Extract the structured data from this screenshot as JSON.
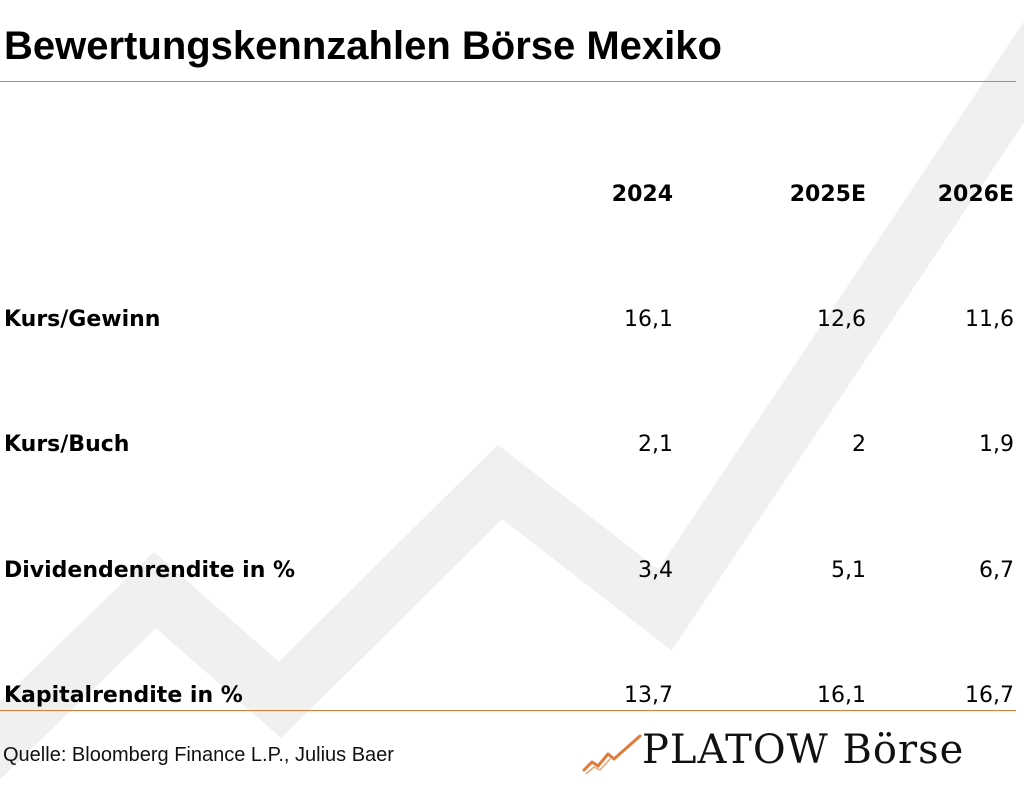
{
  "title": "Bewertungskennzahlen Börse Mexiko",
  "source": "Quelle: Bloomberg Finance L.P., Julius Baer",
  "logo_text": "PLATOW Börse",
  "colors": {
    "accent": "#e07b39",
    "background_arrow": "#f0f0f0",
    "text": "#000000"
  },
  "chart_data": {
    "type": "table",
    "columns": [
      "2024",
      "2025E",
      "2026E"
    ],
    "rows": [
      {
        "label": "Kurs/Gewinn",
        "values": [
          "16,1",
          "12,6",
          "11,6"
        ]
      },
      {
        "label": "Kurs/Buch",
        "values": [
          "2,1",
          "2",
          "1,9"
        ]
      },
      {
        "label": "Dividendenrendite in %",
        "values": [
          "3,4",
          "5,1",
          "6,7"
        ]
      },
      {
        "label": "Kapitalrendite in %",
        "values": [
          "13,7",
          "16,1",
          "16,7"
        ]
      }
    ]
  }
}
